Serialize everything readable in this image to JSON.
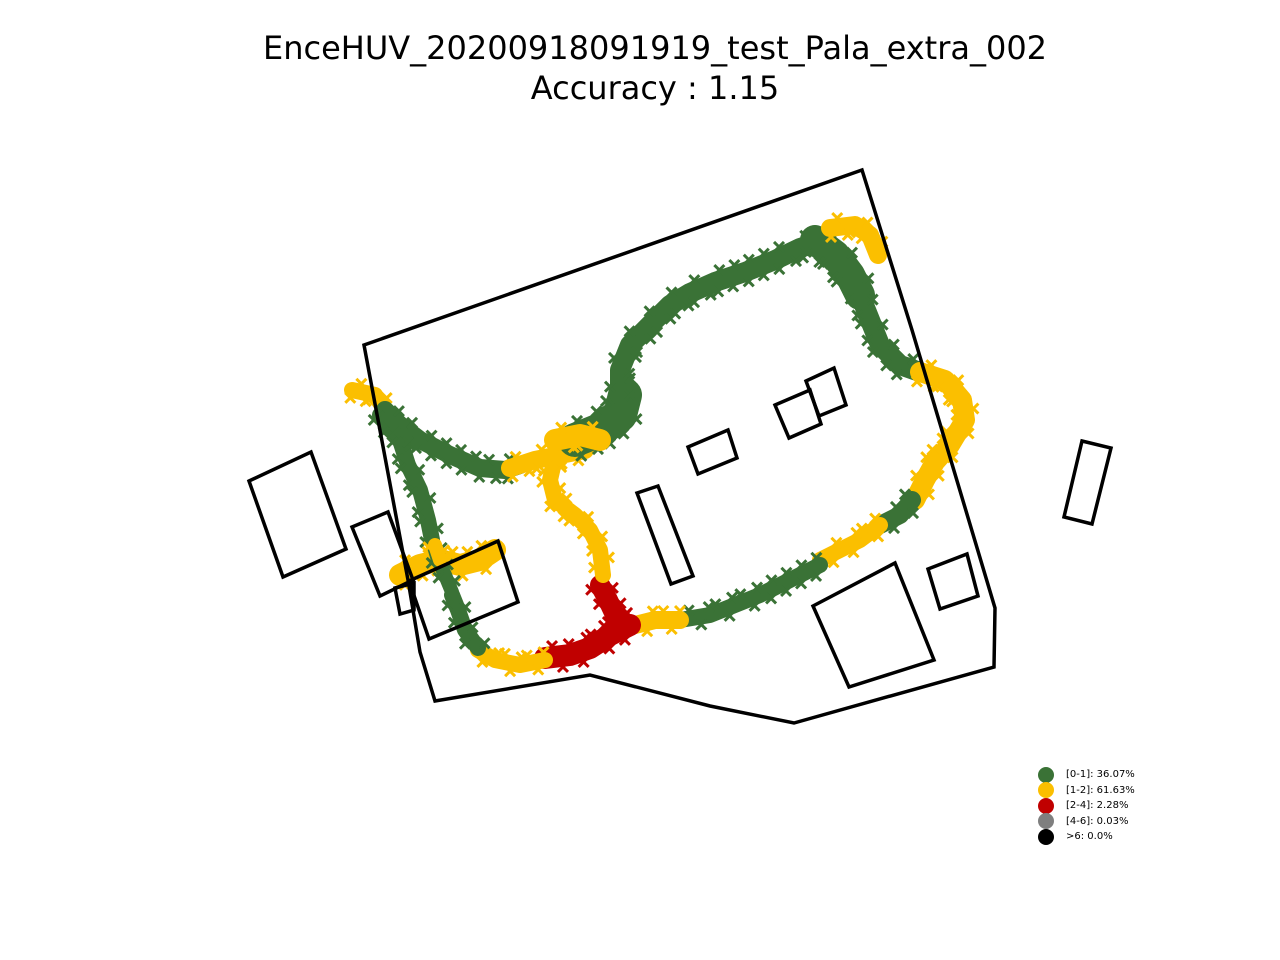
{
  "title": {
    "line1": "EnceHUV_20200918091919_test_Pala_extra_002",
    "line2": "Accuracy : 1.15"
  },
  "legend": {
    "items": [
      {
        "label": "[0-1]: 36.07%",
        "color": "#3a7236"
      },
      {
        "label": "[1-2]: 61.63%",
        "color": "#fbbf00"
      },
      {
        "label": "[2-4]: 2.28%",
        "color": "#c00000"
      },
      {
        "label": "[4-6]: 0.03%",
        "color": "#7f7f7f"
      },
      {
        "label": ">6: 0.0%",
        "color": "#000000"
      }
    ]
  },
  "chart_data": {
    "type": "scatter",
    "title": "EnceHUV_20200918091919_test_Pala_extra_002\nAccuracy : 1.15",
    "marker": "x",
    "axes_visible": false,
    "legend_position": "lower-right",
    "categories": [
      "[0-1]",
      "[1-2]",
      "[2-4]",
      "[4-6]",
      ">6"
    ],
    "percentages": [
      36.07,
      61.63,
      2.28,
      0.03,
      0.0
    ],
    "colors": [
      "#3a7236",
      "#fbbf00",
      "#c00000",
      "#7f7f7f",
      "#000000"
    ],
    "accuracy": 1.15
  }
}
